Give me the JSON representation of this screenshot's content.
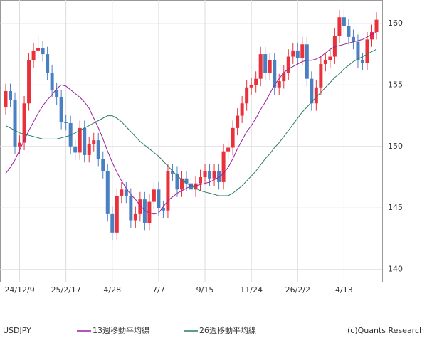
{
  "chart_data": {
    "type": "candlestick",
    "name": "USDJPY",
    "categories": [
      null,
      null,
      null,
      "24/12/9",
      null,
      null,
      null,
      null,
      null,
      null,
      null,
      null,
      null,
      "25/2/17",
      null,
      null,
      null,
      null,
      null,
      null,
      null,
      null,
      null,
      "4/28",
      null,
      null,
      null,
      null,
      null,
      null,
      null,
      null,
      null,
      "7/7",
      null,
      null,
      null,
      null,
      null,
      null,
      null,
      null,
      null,
      "9/15",
      null,
      null,
      null,
      null,
      null,
      null,
      null,
      null,
      null,
      "11/24",
      null,
      null,
      null,
      null,
      null,
      null,
      null,
      null,
      null,
      "26/2/2",
      null,
      null,
      null,
      null,
      null,
      null,
      null,
      null,
      null,
      "4/13",
      null,
      null,
      null,
      null,
      null,
      null,
      null
    ],
    "open": [
      153.2,
      154.5,
      153.8,
      150,
      150.3,
      153.5,
      157,
      157.8,
      158,
      157.5,
      156,
      154.6,
      154,
      152,
      151.9,
      150,
      149.5,
      151.5,
      149.3,
      150.2,
      150.5,
      149,
      148,
      144.5,
      143,
      146,
      146.5,
      146,
      144,
      144.5,
      145.7,
      143.8,
      145.5,
      146.5,
      145,
      144.8,
      148,
      147.8,
      146.5,
      147.4,
      147,
      146.5,
      147,
      147.5,
      148,
      147.4,
      148,
      147.1,
      149.6,
      149.9,
      151.5,
      152.5,
      153.5,
      154.8,
      155,
      155.5,
      157.5,
      156,
      157,
      154.8,
      155.3,
      156,
      157.3,
      157.8,
      157.2,
      158.3,
      155.5,
      153.5,
      154.8,
      156.7,
      157,
      157.3,
      159,
      160.5,
      159.8,
      158.9,
      158.5,
      157,
      156.8,
      158.7,
      159.3
    ],
    "high": [
      155.1,
      155.1,
      154.4,
      150.9,
      154.1,
      157.6,
      158.4,
      159,
      158.6,
      158.1,
      156.6,
      155.2,
      154.6,
      152.6,
      152.5,
      150.6,
      152.1,
      152.1,
      150.8,
      151.1,
      151.1,
      149.6,
      148.6,
      145.1,
      146.6,
      147.1,
      147.1,
      146.6,
      145.1,
      146.3,
      146.3,
      146.1,
      147.1,
      147.1,
      145.6,
      148.6,
      148.6,
      148.4,
      148,
      148,
      147.6,
      147.6,
      148.1,
      148.6,
      148.6,
      148.6,
      148.6,
      150.2,
      150.5,
      152.1,
      153.1,
      154.1,
      155.4,
      155.6,
      156.1,
      158.1,
      158.1,
      157.6,
      157.6,
      155.9,
      156.6,
      157.9,
      158.4,
      158.4,
      158.9,
      158.9,
      156.1,
      155.4,
      157.3,
      157.6,
      157.9,
      159.6,
      161.1,
      161.1,
      160.4,
      159.5,
      159.1,
      157.6,
      159.3,
      159.9,
      160.9
    ],
    "low": [
      152.6,
      153.2,
      149.4,
      149.4,
      149.7,
      152.9,
      156.4,
      157.2,
      156.9,
      155.4,
      154,
      153.4,
      151.4,
      151.3,
      149.4,
      148.9,
      148.9,
      148.7,
      148.7,
      149.6,
      148.4,
      147.4,
      143.9,
      142.4,
      142.4,
      145.4,
      145.4,
      143.4,
      143.4,
      143.9,
      143.2,
      143.2,
      144.9,
      144.4,
      144.2,
      144.2,
      147.2,
      145.9,
      145.9,
      146.4,
      145.9,
      145.9,
      146.4,
      146.9,
      146.8,
      146.8,
      146.5,
      146.5,
      149,
      149.3,
      150.9,
      151.9,
      152.9,
      154.2,
      154.4,
      154.9,
      155.4,
      155.4,
      154.2,
      154.2,
      154.7,
      155.4,
      156.7,
      156.6,
      156.6,
      154.9,
      152.9,
      152.9,
      154.2,
      156.1,
      156.4,
      156.7,
      158.4,
      159.2,
      158.3,
      157.9,
      156.4,
      156.2,
      156.2,
      158.1,
      158.7
    ],
    "close": [
      154.5,
      153.8,
      150,
      150.3,
      153.5,
      157,
      157.8,
      158,
      157.5,
      156,
      154.6,
      154,
      152,
      151.9,
      150,
      149.5,
      151.5,
      149.3,
      150.2,
      150.5,
      149,
      148,
      144.5,
      143,
      146,
      146.5,
      146,
      144,
      144.5,
      145.7,
      143.8,
      145.5,
      146.5,
      145,
      144.8,
      148,
      147.8,
      146.5,
      147.4,
      147,
      146.5,
      147,
      147.5,
      148,
      147.4,
      148,
      147.1,
      149.6,
      149.9,
      151.5,
      152.5,
      153.5,
      154.8,
      155,
      155.5,
      157.5,
      156,
      157,
      154.8,
      155.3,
      156,
      157.3,
      157.8,
      157.2,
      158.3,
      155.5,
      153.5,
      154.8,
      156.7,
      157,
      157.3,
      159,
      160.5,
      159.8,
      158.9,
      158.5,
      157,
      156.8,
      158.7,
      159.3,
      160.3
    ],
    "up_color": "#e8313b",
    "down_color": "#4a7fc1",
    "series": [
      {
        "name": "13週移動平均線",
        "color": "#9b1fa0",
        "values": [
          147.8,
          148.3,
          148.9,
          149.7,
          150.5,
          151.3,
          152,
          152.7,
          153.3,
          153.8,
          154.2,
          154.7,
          155,
          154.9,
          154.6,
          154.3,
          154,
          153.6,
          153.1,
          152.3,
          151.5,
          150.6,
          149.6,
          148.7,
          147.9,
          147.2,
          146.6,
          146.1,
          145.7,
          145.2,
          144.8,
          144.6,
          144.5,
          144.6,
          145.1,
          145.6,
          145.9,
          146.2,
          146.4,
          146.6,
          146.8,
          146.8,
          146.9,
          147,
          147.1,
          147.3,
          147.5,
          147.8,
          148.3,
          149,
          149.8,
          150.5,
          151.2,
          151.7,
          152.3,
          153,
          153.6,
          154.3,
          155,
          155.5,
          156,
          156.3,
          156.5,
          156.7,
          156.9,
          157,
          157,
          157.1,
          157.3,
          157.6,
          157.9,
          158.1,
          158.2,
          158.3,
          158.4,
          158.5,
          158.6,
          158.7,
          158.9,
          159.1,
          159.3
        ]
      },
      {
        "name": "26週移動平均線",
        "color": "#2b7a6c",
        "values": [
          151.7,
          151.5,
          151.3,
          151.1,
          151,
          150.9,
          150.8,
          150.7,
          150.6,
          150.6,
          150.6,
          150.6,
          150.7,
          150.8,
          150.9,
          151.1,
          151.3,
          151.5,
          151.7,
          151.9,
          152.1,
          152.3,
          152.5,
          152.5,
          152.3,
          152,
          151.6,
          151.2,
          150.8,
          150.4,
          150.1,
          149.8,
          149.5,
          149.2,
          148.8,
          148.4,
          148,
          147.6,
          147.3,
          147,
          146.8,
          146.6,
          146.4,
          146.3,
          146.2,
          146.1,
          146,
          146,
          146,
          146.2,
          146.5,
          146.8,
          147.2,
          147.6,
          148,
          148.5,
          149,
          149.4,
          149.9,
          150.3,
          150.8,
          151.3,
          151.8,
          152.3,
          152.8,
          153.2,
          153.6,
          154,
          154.4,
          154.8,
          155.2,
          155.6,
          155.9,
          156.3,
          156.6,
          156.9,
          157.1,
          157.3,
          157.5,
          157.7,
          157.9
        ]
      }
    ],
    "ylim": [
      139,
      161.9
    ],
    "yticks": [
      140,
      145,
      150,
      155,
      160
    ],
    "grid": true,
    "credit": "(c)Quants Research"
  }
}
